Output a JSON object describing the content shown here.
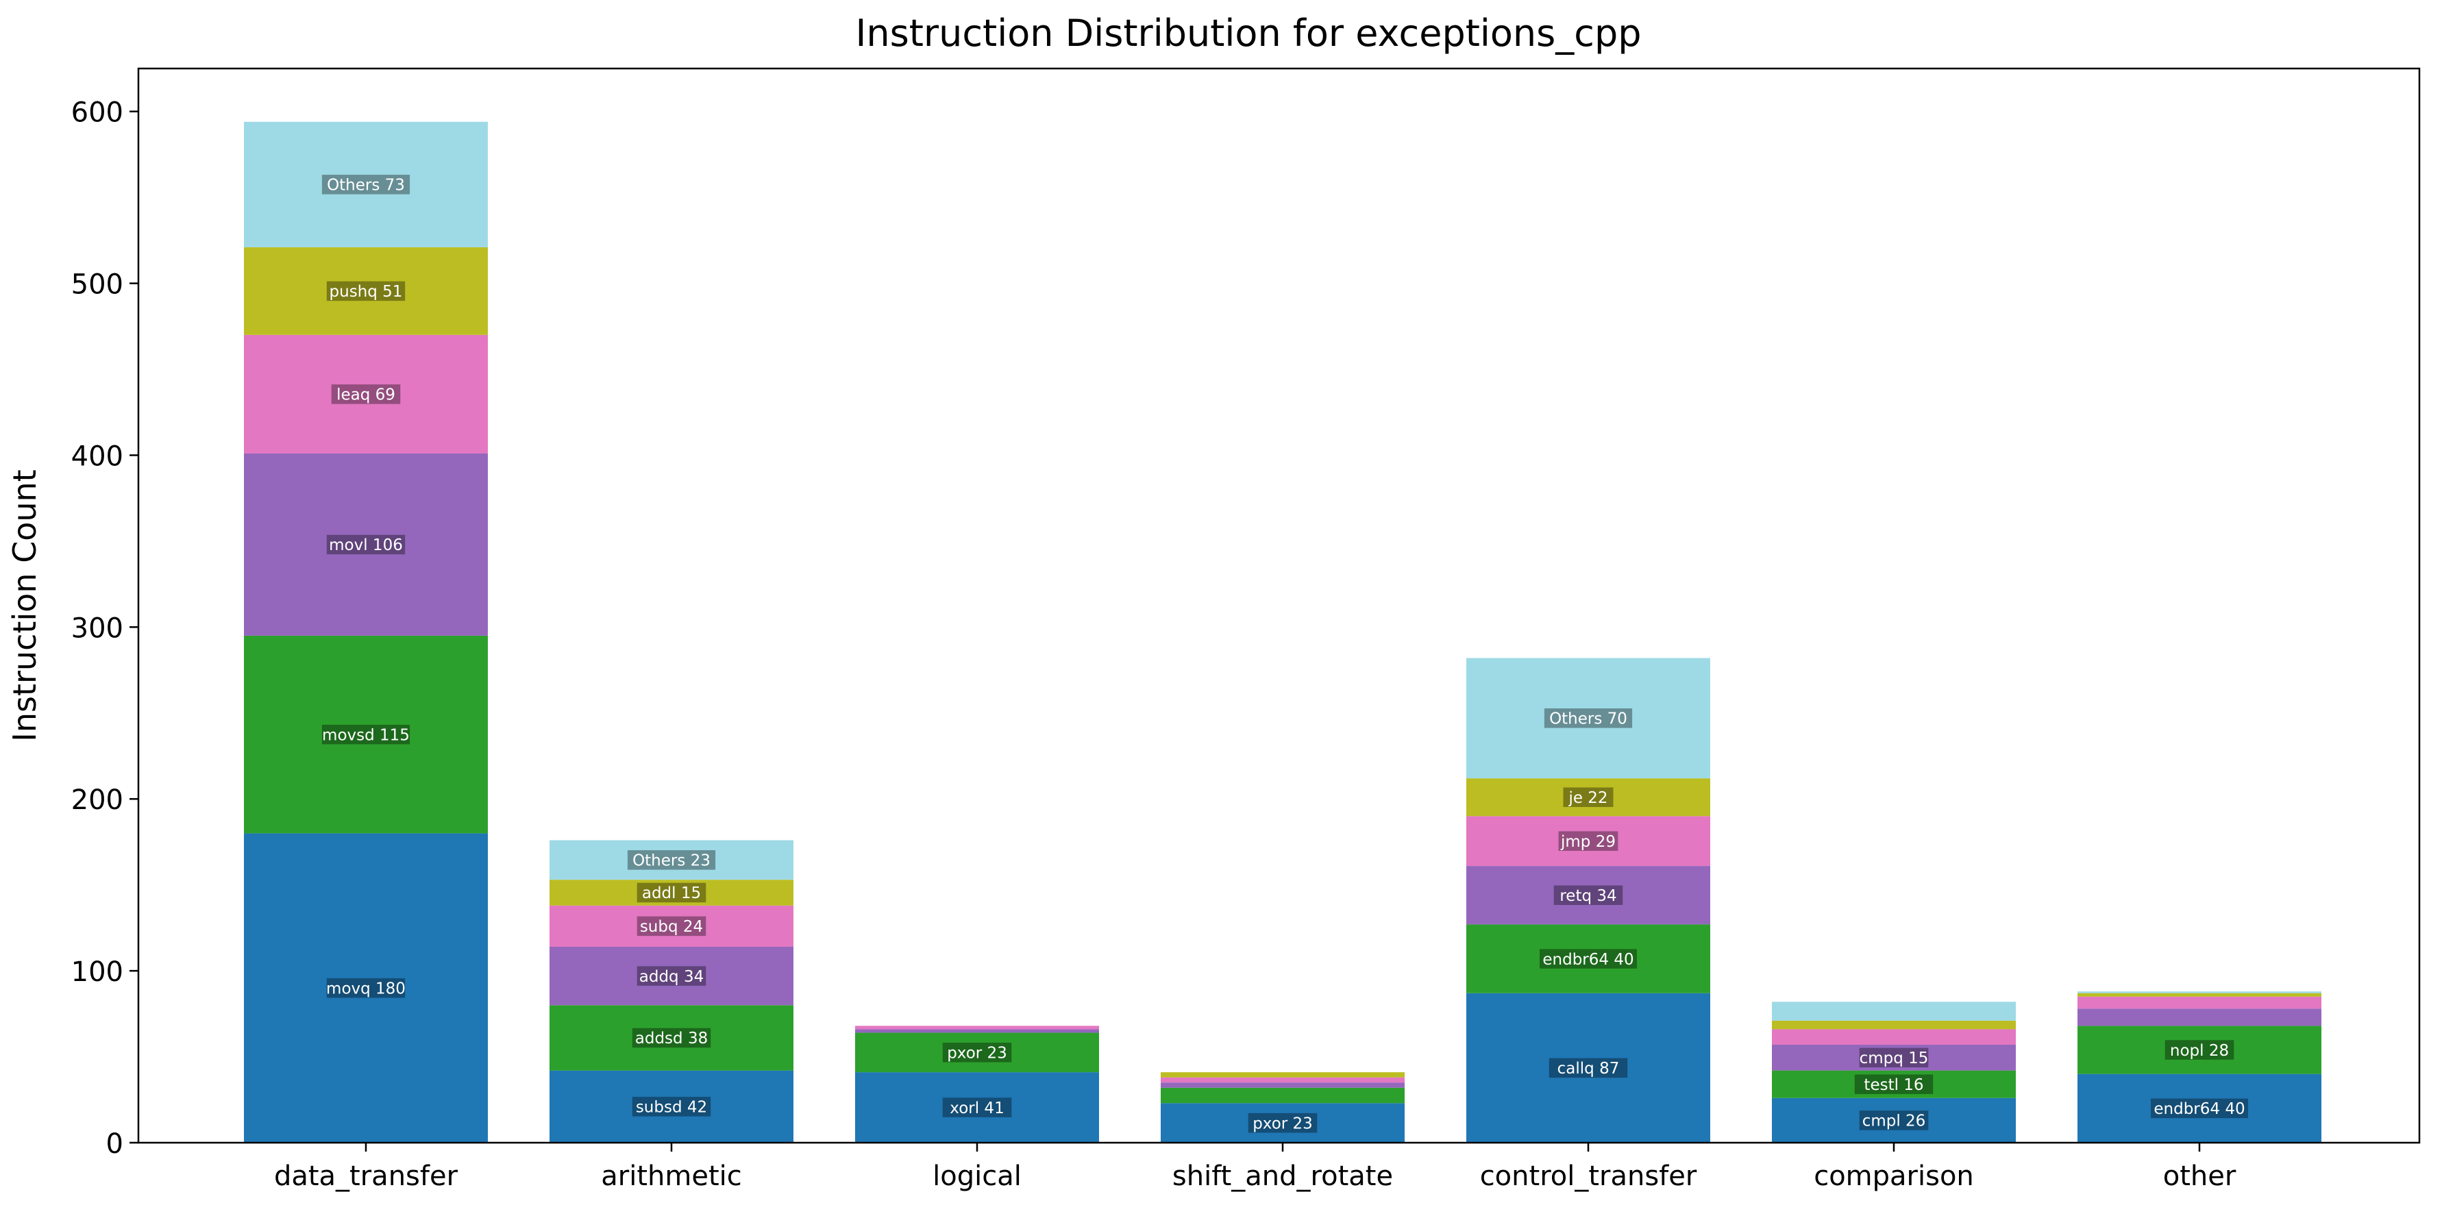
{
  "chart_data": {
    "type": "bar",
    "stacked": true,
    "title": "Instruction Distribution for exceptions_cpp",
    "xlabel": "",
    "ylabel": "Instruction Count",
    "ylim": [
      0,
      625
    ],
    "yticks": [
      0,
      100,
      200,
      300,
      400,
      500,
      600
    ],
    "grid": false,
    "legend": "none",
    "categories": [
      "data_transfer",
      "arithmetic",
      "logical",
      "shift_and_rotate",
      "control_transfer",
      "comparison",
      "other"
    ],
    "colors": [
      "#1f77b4",
      "#2ca02c",
      "#9467bd",
      "#e377c2",
      "#bcbd22",
      "#9edae5"
    ],
    "stacks": [
      [
        {
          "label": "movq",
          "value": 180
        },
        {
          "label": "movsd",
          "value": 115
        },
        {
          "label": "movl",
          "value": 106
        },
        {
          "label": "leaq",
          "value": 69
        },
        {
          "label": "pushq",
          "value": 51
        },
        {
          "label": "Others",
          "value": 73
        }
      ],
      [
        {
          "label": "subsd",
          "value": 42
        },
        {
          "label": "addsd",
          "value": 38
        },
        {
          "label": "addq",
          "value": 34
        },
        {
          "label": "subq",
          "value": 24
        },
        {
          "label": "addl",
          "value": 15
        },
        {
          "label": "Others",
          "value": 23
        }
      ],
      [
        {
          "label": "xorl",
          "value": 41
        },
        {
          "label": "pxor",
          "value": 23
        },
        {
          "label": "",
          "value": 2
        },
        {
          "label": "",
          "value": 2
        },
        {
          "label": "",
          "value": 0
        },
        {
          "label": "",
          "value": 0
        }
      ],
      [
        {
          "label": "pxor",
          "value": 23
        },
        {
          "label": "",
          "value": 9
        },
        {
          "label": "",
          "value": 3
        },
        {
          "label": "",
          "value": 3
        },
        {
          "label": "",
          "value": 3
        },
        {
          "label": "",
          "value": 0
        }
      ],
      [
        {
          "label": "callq",
          "value": 87
        },
        {
          "label": "endbr64",
          "value": 40
        },
        {
          "label": "retq",
          "value": 34
        },
        {
          "label": "jmp",
          "value": 29
        },
        {
          "label": "je",
          "value": 22
        },
        {
          "label": "Others",
          "value": 70
        }
      ],
      [
        {
          "label": "cmpl",
          "value": 26
        },
        {
          "label": "testl",
          "value": 16
        },
        {
          "label": "cmpq",
          "value": 15
        },
        {
          "label": "",
          "value": 9
        },
        {
          "label": "",
          "value": 5
        },
        {
          "label": "",
          "value": 11
        }
      ],
      [
        {
          "label": "endbr64",
          "value": 40
        },
        {
          "label": "nopl",
          "value": 28
        },
        {
          "label": "",
          "value": 10
        },
        {
          "label": "",
          "value": 7
        },
        {
          "label": "",
          "value": 2
        },
        {
          "label": "",
          "value": 1
        }
      ]
    ]
  }
}
